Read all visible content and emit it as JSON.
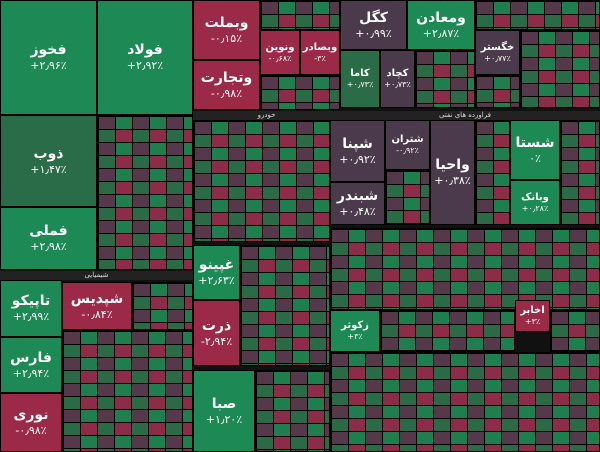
{
  "tiles": [
    {
      "symbol": "فخوز",
      "change": "+۲٫۹۶٪"
    },
    {
      "symbol": "فولاد",
      "change": "+۲٫۹۲٪"
    },
    {
      "symbol": "ذوب",
      "change": "+۱٫۴۷٪"
    },
    {
      "symbol": "فملی",
      "change": "+۲٫۹۸٪"
    },
    {
      "symbol": "تاپیکو",
      "change": "+۲٫۹۹٪"
    },
    {
      "symbol": "فارس",
      "change": "+۲٫۹۴٪"
    },
    {
      "symbol": "نوری",
      "change": "-۰٫۹۸٪"
    },
    {
      "symbol": "شپدیس",
      "change": "-۰٫۸۴٪"
    },
    {
      "symbol": "وبملت",
      "change": "-۰٫۱۵٪"
    },
    {
      "symbol": "وتجارت",
      "change": "-۰٫۹۸٪"
    },
    {
      "symbol": "ونوین",
      "change": "-۰٫۶۸٪"
    },
    {
      "symbol": "وبصادر",
      "change": "-۳٪"
    },
    {
      "symbol": "غپینو",
      "change": "+۲٫۶۳٪"
    },
    {
      "symbol": "ذرت",
      "change": "-۲٫۹۴٪"
    },
    {
      "symbol": "صبا",
      "change": "+۱٫۲۰٪"
    },
    {
      "symbol": "کگل",
      "change": "+۰٫۹۹٪"
    },
    {
      "symbol": "ومعادن",
      "change": "+۲٫۸۷٪"
    },
    {
      "symbol": "کاما",
      "change": "+۰٫۷۳٪"
    },
    {
      "symbol": "کچاد",
      "change": "+۰٫۷۳٪"
    },
    {
      "symbol": "خگستر",
      "change": "+۰٫۷۷٪"
    },
    {
      "symbol": "شپنا",
      "change": "+۰٫۹۲٪"
    },
    {
      "symbol": "شتران",
      "change": "-۰٫۹۲٪"
    },
    {
      "symbol": "شبندر",
      "change": "+۰٫۴۸٪"
    },
    {
      "symbol": "واحیا",
      "change": "+۰٫۳۸٪"
    },
    {
      "symbol": "شستا",
      "change": "۰٪"
    },
    {
      "symbol": "وبانک",
      "change": "+۰٫۲۸٪"
    },
    {
      "symbol": "زکوثر",
      "change": "+۳٪"
    },
    {
      "symbol": "اخابر",
      "change": "+۳٪"
    }
  ],
  "sectors": [
    "شیمیایی",
    "خودرو",
    "فراورده های نفتی"
  ]
}
